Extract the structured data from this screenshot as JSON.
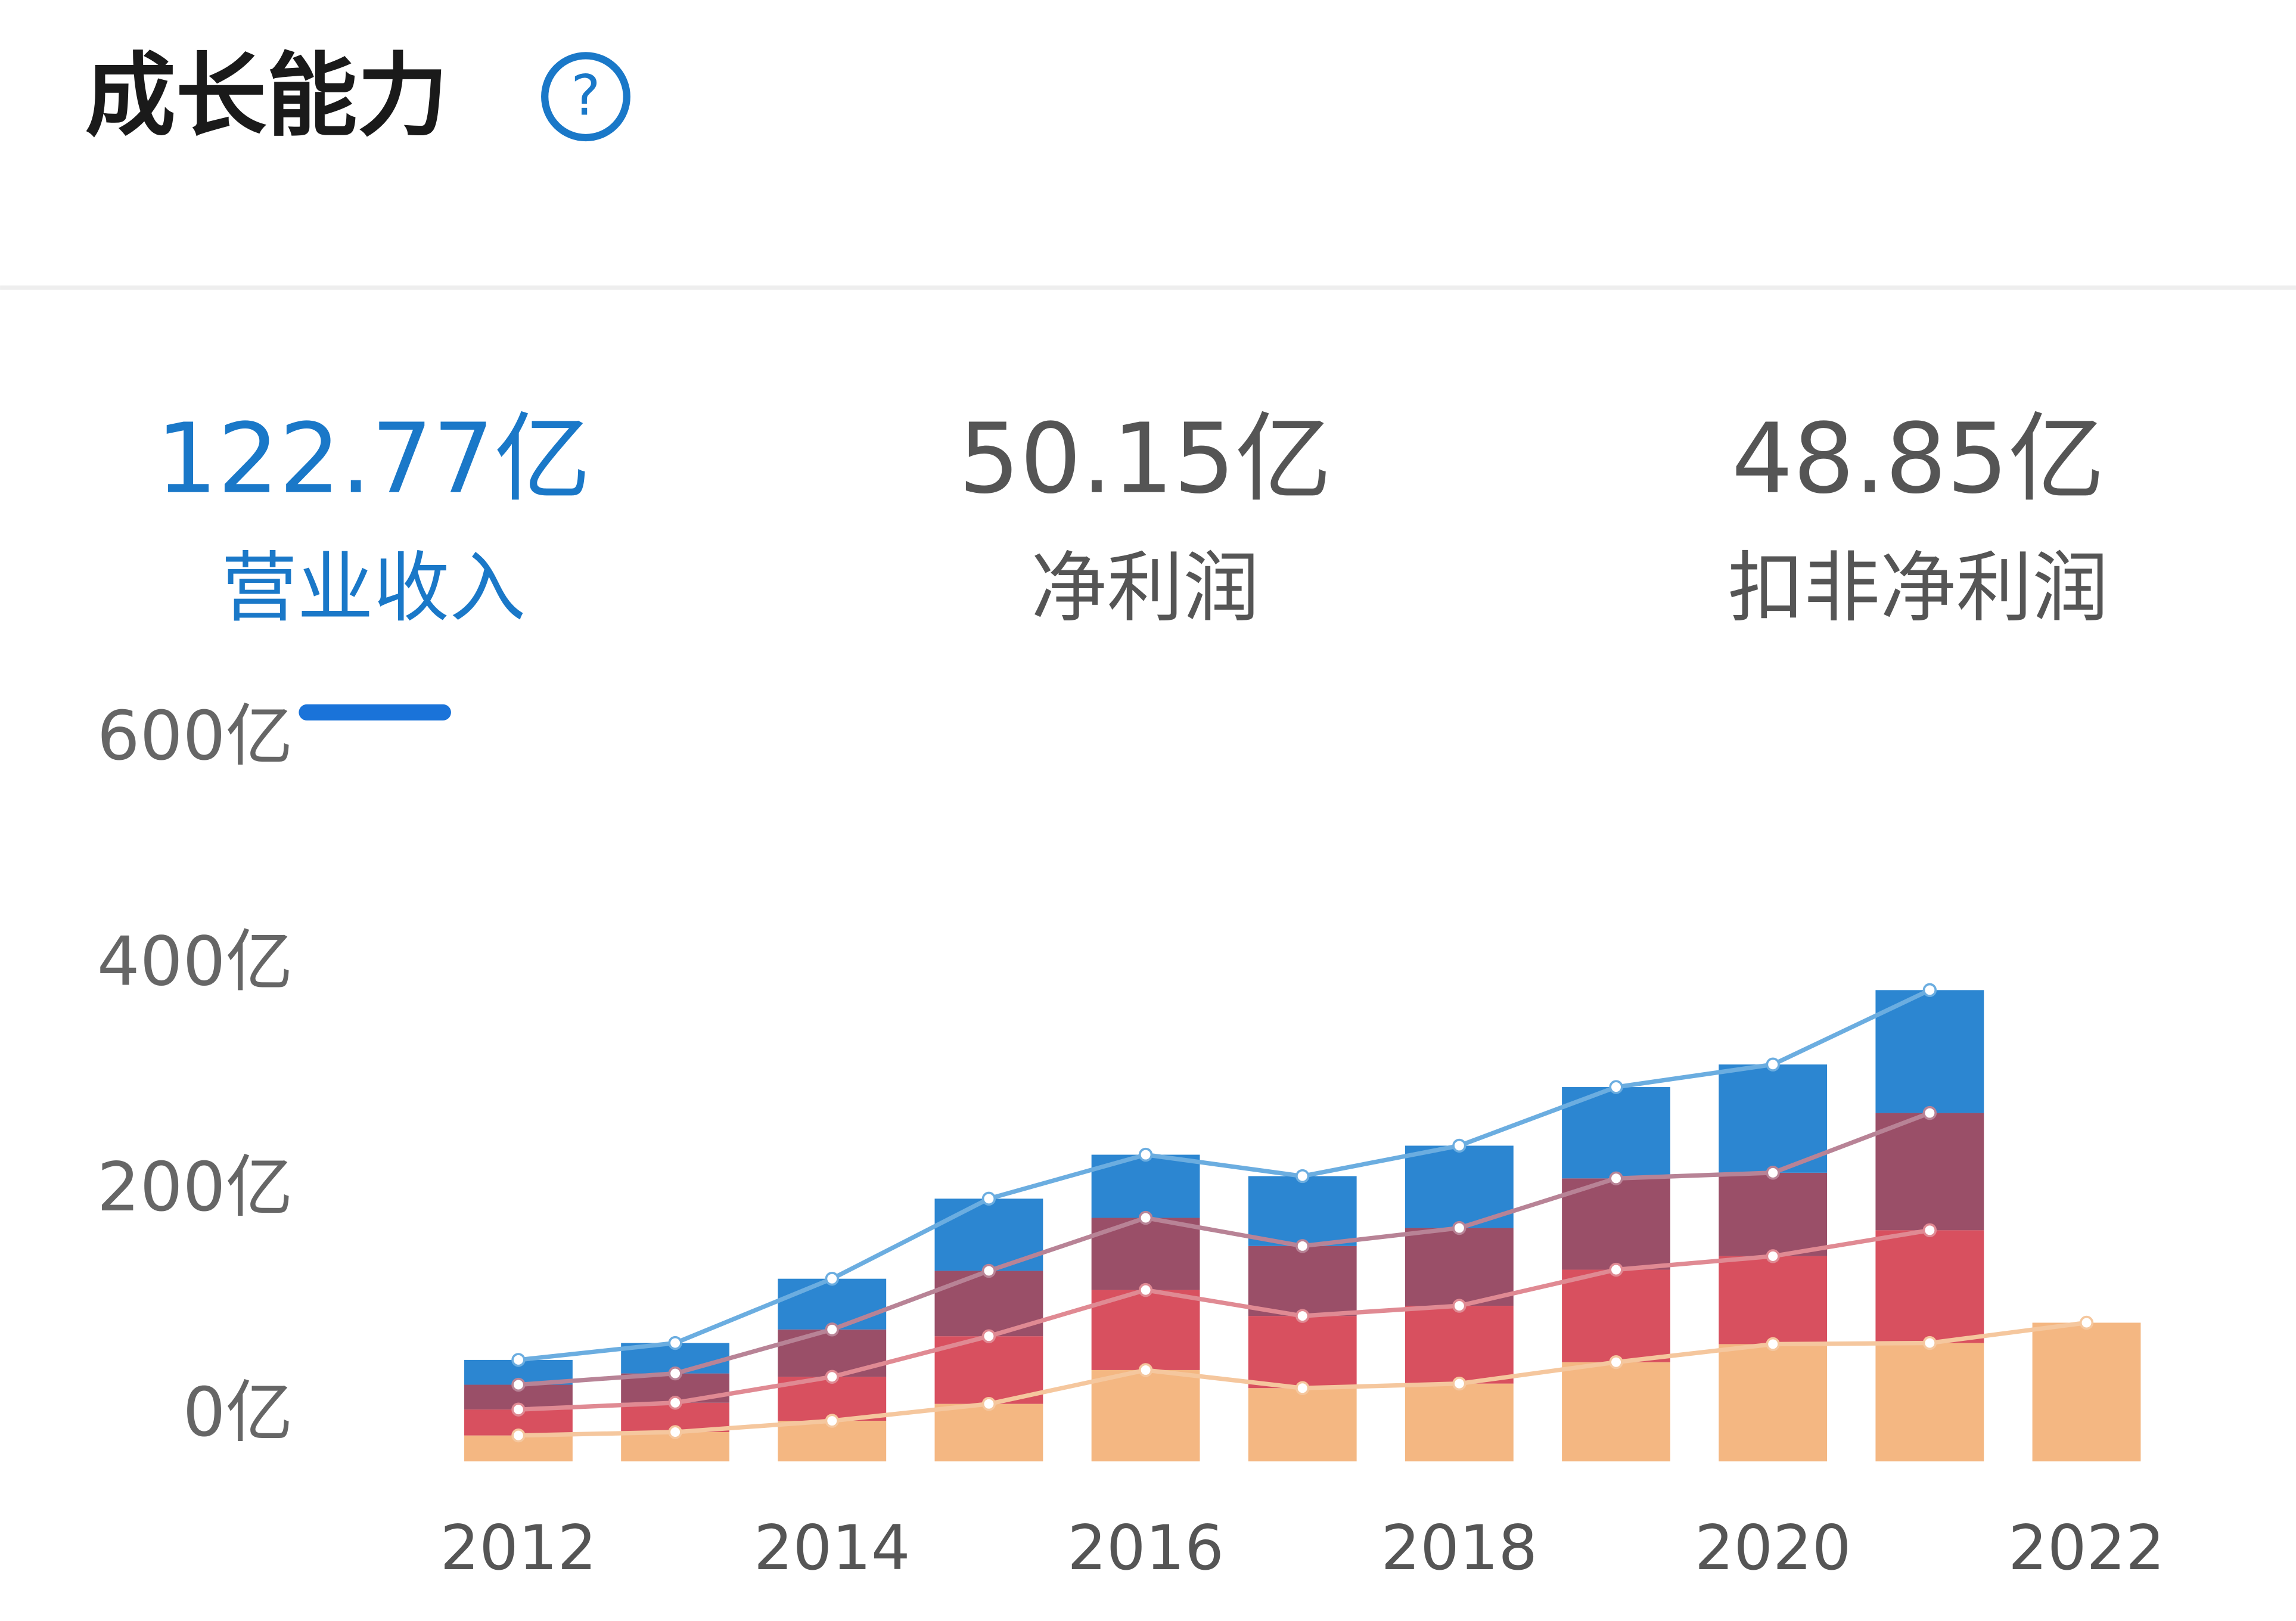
{
  "header": {
    "title": "成长能力",
    "help": "?"
  },
  "tabs": [
    {
      "value": "122.77亿",
      "label": "营业收入"
    },
    {
      "value": "50.15亿",
      "label": "净利润"
    },
    {
      "value": "48.85亿",
      "label": "扣非净利润"
    }
  ],
  "chart_data": {
    "type": "stacked-bar-line",
    "categories": [
      "2012",
      null,
      "2014",
      null,
      "2016",
      null,
      "2018",
      null,
      "2020",
      null,
      "2022"
    ],
    "ylim": [
      0,
      600
    ],
    "yticks": [
      {
        "value": 0,
        "label": "0亿"
      },
      {
        "value": 200,
        "label": "200亿"
      },
      {
        "value": 400,
        "label": "400亿"
      },
      {
        "value": 600,
        "label": "600亿"
      }
    ],
    "series": [
      {
        "color": "#f4b782",
        "line_color": "#f5c79e",
        "values": [
          23,
          26,
          36,
          51,
          81,
          65,
          69,
          88,
          104,
          105,
          123
        ]
      },
      {
        "color": "#d8505f",
        "line_color": "#e08a93",
        "values": [
          23,
          26,
          39,
          60,
          71,
          64,
          69,
          82,
          78,
          100,
          null
        ]
      },
      {
        "color": "#9a4f68",
        "line_color": "#b88396",
        "values": [
          22,
          26,
          42,
          58,
          64,
          62,
          69,
          81,
          74,
          104,
          null
        ]
      },
      {
        "color": "#2c86d1",
        "line_color": "#6badE0",
        "values": [
          22,
          27,
          45,
          64,
          56,
          62,
          73,
          81,
          96,
          109,
          null
        ]
      }
    ]
  }
}
